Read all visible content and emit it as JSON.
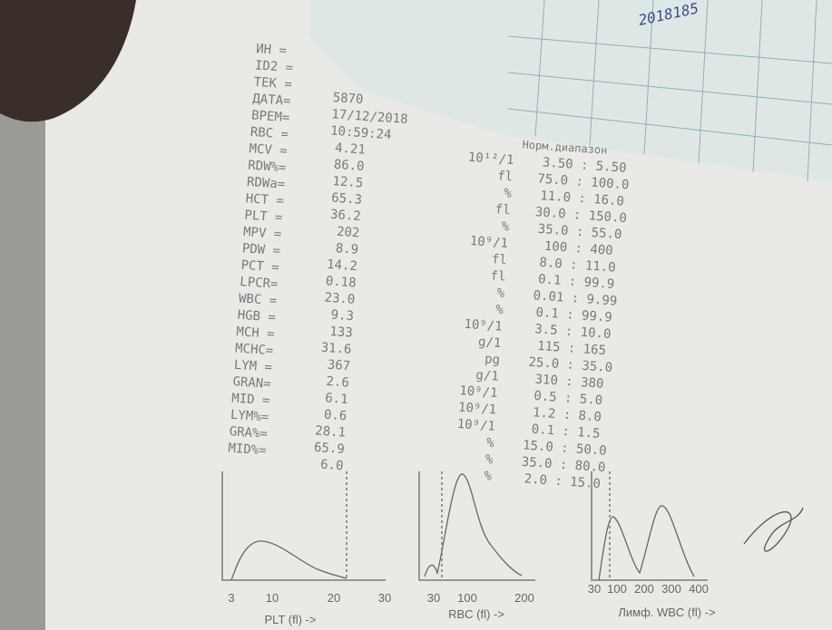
{
  "report": {
    "labels": [
      "ИН =",
      "ID2 =",
      "ТЕК =",
      "ДАТА=",
      "ВРЕМ=",
      "RBC =",
      "MCV =",
      "RDW%=",
      "RDWa=",
      "HCT =",
      "PLT =",
      "MPV =",
      "PDW =",
      "PCT =",
      "LPCR=",
      "WBC =",
      "HGB =",
      "MCH =",
      "MCHC=",
      "LYM =",
      "GRAN=",
      "MID =",
      "LYM%=",
      "GRA%=",
      "MID%="
    ],
    "values": [
      "5870",
      "17/12/2018",
      "10:59:24",
      "4.21",
      "86.0",
      "12.5",
      "65.3",
      "36.2",
      "202",
      "8.9",
      "14.2",
      "0.18",
      "23.0",
      "9.3",
      "133",
      "31.6",
      "367",
      "2.6",
      "6.1",
      "0.6",
      "28.1",
      "65.9",
      "6.0"
    ],
    "range_header": "Норм.диапазон",
    "units": [
      "10¹²/1",
      "fl",
      "%",
      "fl",
      "%",
      "10⁹/1",
      "fl",
      "fl",
      "%",
      "%",
      "10⁹/1",
      "g/1",
      "pg",
      "g/1",
      "10⁹/1",
      "10⁹/1",
      "10⁹/1",
      "%",
      "%",
      "%"
    ],
    "ranges": [
      "3.50 : 5.50",
      "75.0 : 100.0",
      "11.0 : 16.0",
      "30.0 : 150.0",
      "35.0 : 55.0",
      "100 : 400",
      "8.0 : 11.0",
      "0.1 : 99.9",
      "0.01 : 9.99",
      "0.1 : 99.9",
      "3.5 : 10.0",
      "115 : 165",
      "25.0 : 35.0",
      "310 : 380",
      "0.5 : 5.0",
      "1.2 : 8.0",
      "0.1 : 1.5",
      "15.0 : 50.0",
      "35.0 : 80.0",
      "2.0 : 15.0"
    ]
  },
  "histograms": [
    {
      "ticks": [
        "3",
        "10",
        "20",
        "30"
      ],
      "caption": "PLT (fl) ->"
    },
    {
      "ticks": [
        "30",
        "100",
        "200"
      ],
      "caption": "RBC (fl) ->"
    },
    {
      "ticks": [
        "30",
        "100",
        "200",
        "300",
        "400"
      ],
      "caption": "Лимф. WBC (fl) ->"
    }
  ],
  "notes": [
    "2018185"
  ]
}
